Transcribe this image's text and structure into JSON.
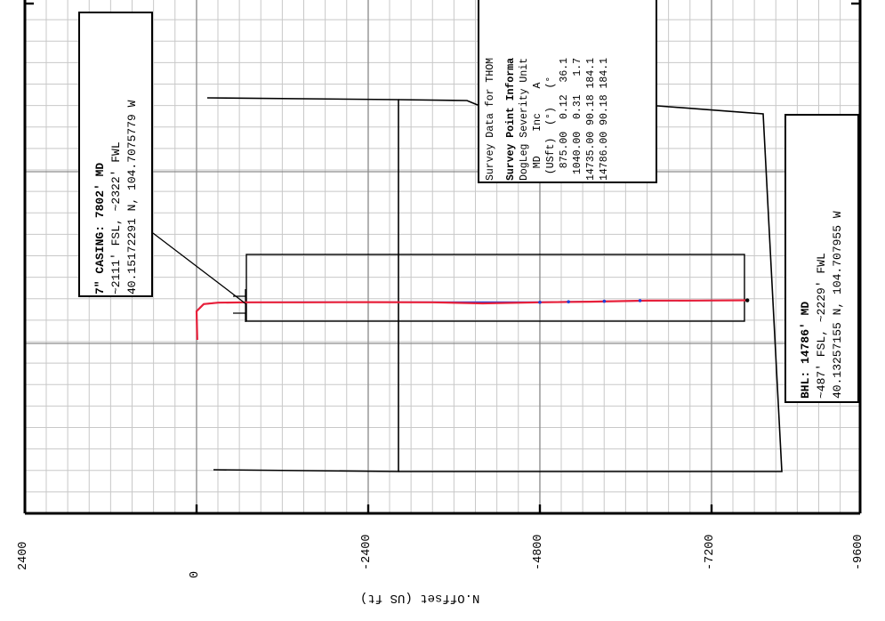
{
  "chart_data": {
    "type": "line",
    "xlabel": "N.Offset (US ft)",
    "xticks": [
      "2400",
      "0",
      "-2400",
      "-4800",
      "-7200",
      "-9600"
    ],
    "xlim": [
      2400,
      -9600
    ],
    "series": [
      {
        "style": "actual",
        "color": "#e8203a",
        "x": [
          -10,
          0,
          -100,
          -300,
          -700,
          -1500,
          -2400,
          -3300,
          -4000,
          -4800,
          -5500,
          -6300,
          -7000,
          -7700
        ],
        "y": [
          0,
          400,
          500,
          520,
          525,
          525,
          527,
          525,
          510,
          525,
          533,
          548,
          550,
          553
        ]
      },
      {
        "style": "plan",
        "color": "#1f3fd8",
        "x": [
          -10,
          0,
          -100,
          -300,
          -700,
          -1500,
          -2400,
          -3300,
          -4000,
          -4800,
          -5500,
          -6300,
          -7000,
          -7700
        ],
        "y": [
          0,
          400,
          500,
          520,
          525,
          528,
          528,
          528,
          528,
          528,
          536,
          546,
          550,
          552
        ]
      }
    ],
    "survey_points": {
      "x": [
        -4800,
        -5200,
        -5700,
        -6200,
        -7700
      ],
      "y": [
        525,
        533,
        540,
        548,
        553
      ]
    }
  },
  "annotations": {
    "casing": {
      "title": "7\" CASING: 7802' MD",
      "line2": "~2111' FSL, ~2322' FWL",
      "line3": "40.15172291 N, 104.7075779 W"
    },
    "bhl": {
      "title": "BHL: 14786' MD",
      "line2": "~487' FSL, ~2229' FWL",
      "line3": "40.13257155 N, 104.707955 W"
    },
    "survey": {
      "title": "Survey Data for THOM",
      "header": "Survey Point Informa",
      "units": "DogLeg Severity Unit",
      "columns": "  MD    Inc    A",
      "column_units": " (USft)  (°)   (°",
      "rows": [
        "  875.00  0.12  36.1",
        " 1040.00  0.31   1.7",
        "14735.00 90.18 184.1",
        "14786.00 90.18 184.1"
      ]
    }
  },
  "colors": {
    "grid_minor": "#c8c8c8",
    "grid_major": "#8c8c8c",
    "axis": "#000000",
    "outline": "#000000"
  }
}
